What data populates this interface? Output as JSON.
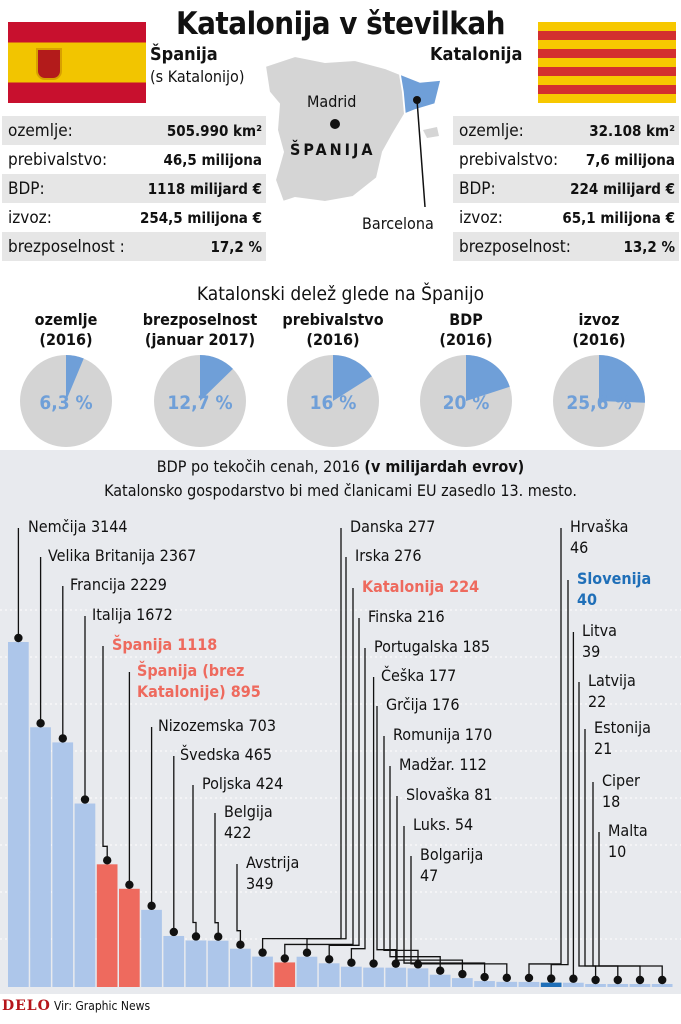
{
  "title": "Katalonija v številkah",
  "spain": {
    "name": "Španija",
    "sub": "(s Katalonijo)"
  },
  "catalonia": {
    "name": "Katalonija"
  },
  "map": {
    "madrid": "Madrid",
    "spain": "ŠPANIJA",
    "barcelona": "Barcelona"
  },
  "stats_spain": [
    {
      "label": "ozemlje:",
      "value": "505.990 km²"
    },
    {
      "label": "prebivalstvo:",
      "value": "46,5 milijona"
    },
    {
      "label": "BDP:",
      "value": "1118 milijard €"
    },
    {
      "label": "izvoz:",
      "value": "254,5 milijona €"
    },
    {
      "label": "brezposelnost :",
      "value": "17,2 %"
    }
  ],
  "stats_catalonia": [
    {
      "label": "ozemlje:",
      "value": "32.108 km²"
    },
    {
      "label": "prebivalstvo:",
      "value": "7,6 milijona"
    },
    {
      "label": "BDP:",
      "value": "224 milijard €"
    },
    {
      "label": "izvoz:",
      "value": "65,1 milijona €"
    },
    {
      "label": "brezposelnost:",
      "value": "13,2 %"
    }
  ],
  "share_title": "Katalonski delež glede na Španijo",
  "colors": {
    "bar": "#adc6ea",
    "highlight": "#ee6a5e",
    "slovenia": "#1f6fb8",
    "pie_bg": "#d4d4d4",
    "pie_fg": "#6f9fd8"
  },
  "chart_data": [
    {
      "type": "pie",
      "items": [
        {
          "label1": "ozemlje",
          "label2": "(2016)",
          "percent": 6.3,
          "display": "6,3 %"
        },
        {
          "label1": "brezposelnost",
          "label2": "(januar 2017)",
          "percent": 12.7,
          "display": "12,7 %"
        },
        {
          "label1": "prebivalstvo",
          "label2": "(2016)",
          "percent": 16,
          "display": "16 %"
        },
        {
          "label1": "BDP",
          "label2": "(2016)",
          "percent": 20,
          "display": "20 %"
        },
        {
          "label1": "izvoz",
          "label2": "(2016)",
          "percent": 25.6,
          "display": "25,6 %"
        }
      ]
    },
    {
      "type": "bar",
      "title": "BDP po tekočih cenah, 2016",
      "title_bold": "(v milijardah evrov)",
      "subtitle": "Katalonsko gospodarstvo bi med članicami EU zasedlo 13. mesto.",
      "series": [
        {
          "name": "Nemčija",
          "value": 3144,
          "label": "Nemčija 3144"
        },
        {
          "name": "Velika Britanija",
          "value": 2367,
          "label": "Velika Britanija 2367"
        },
        {
          "name": "Francija",
          "value": 2229,
          "label": "Francija 2229"
        },
        {
          "name": "Italija",
          "value": 1672,
          "label": "Italija 1672"
        },
        {
          "name": "Španija",
          "value": 1118,
          "label": "Španija 1118",
          "highlight": true
        },
        {
          "name": "Španija (brez Katalonije)",
          "value": 895,
          "label": "Španija (brez\nKatalonije) 895",
          "highlight": true
        },
        {
          "name": "Nizozemska",
          "value": 703,
          "label": "Nizozemska 703"
        },
        {
          "name": "Švedska",
          "value": 465,
          "label": "Švedska 465"
        },
        {
          "name": "Poljska",
          "value": 424,
          "label": "Poljska 424"
        },
        {
          "name": "Belgija",
          "value": 422,
          "label": "Belgija\n422"
        },
        {
          "name": "Avstrija",
          "value": 349,
          "label": "Avstrija\n349"
        },
        {
          "name": "Danska",
          "value": 277,
          "label": "Danska 277"
        },
        {
          "name": "Katalonija",
          "value": 224,
          "label": "Katalonija 224",
          "highlight": true
        },
        {
          "name": "Irska",
          "value": 276,
          "label": "Irska 276"
        },
        {
          "name": "Finska",
          "value": 216,
          "label": "Finska 216"
        },
        {
          "name": "Portugalska",
          "value": 185,
          "label": "Portugalska 185"
        },
        {
          "name": "Češka",
          "value": 177,
          "label": "Češka 177"
        },
        {
          "name": "Grčija",
          "value": 176,
          "label": "Grčija 176"
        },
        {
          "name": "Romunija",
          "value": 170,
          "label": "Romunija 170"
        },
        {
          "name": "Madžar.",
          "value": 112,
          "label": "Madžar. 112"
        },
        {
          "name": "Slovaška",
          "value": 81,
          "label": "Slovaška 81"
        },
        {
          "name": "Luks.",
          "value": 54,
          "label": "Luks. 54"
        },
        {
          "name": "Bolgarija",
          "value": 47,
          "label": "Bolgarija\n47"
        },
        {
          "name": "Hrvaška",
          "value": 46,
          "label": "Hrvaška\n46"
        },
        {
          "name": "Slovenija",
          "value": 40,
          "label": "Slovenija\n40",
          "slovenia": true
        },
        {
          "name": "Litva",
          "value": 39,
          "label": "Litva\n39"
        },
        {
          "name": "Latvija",
          "value": 22,
          "label": "Latvija\n22"
        },
        {
          "name": "Estonija",
          "value": 21,
          "label": "Estonija\n21"
        },
        {
          "name": "Ciper",
          "value": 18,
          "label": "Ciper\n18"
        },
        {
          "name": "Malta",
          "value": 10,
          "label": "Malta\n10"
        }
      ]
    }
  ],
  "footer": {
    "logo": "DELO",
    "source": "Vir: Graphic News"
  }
}
